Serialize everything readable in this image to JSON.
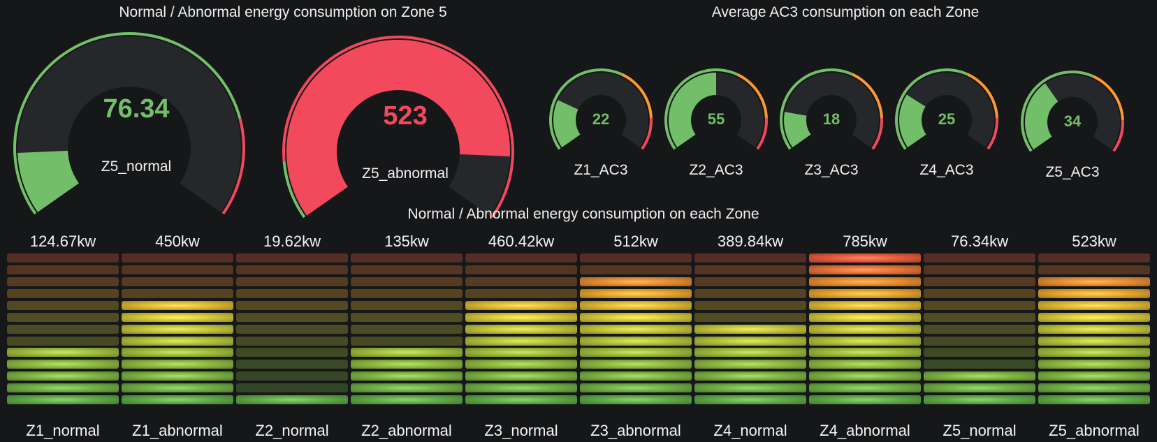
{
  "zone5_panel": {
    "title": "Normal / Abnormal energy consumption on Zone 5",
    "gauges": [
      {
        "label": "Z5_normal",
        "value": "76.34",
        "fraction": 0.13,
        "color": "#73bf69"
      },
      {
        "label": "Z5_abnormal",
        "value": "523",
        "fraction": 0.87,
        "color": "#f2495c"
      }
    ]
  },
  "ac3_panel": {
    "title": "Average AC3 consumption on each Zone",
    "gauges": [
      {
        "label": "Z1_AC3",
        "value": "22",
        "fraction": 0.24
      },
      {
        "label": "Z2_AC3",
        "value": "55",
        "fraction": 0.5
      },
      {
        "label": "Z3_AC3",
        "value": "18",
        "fraction": 0.18
      },
      {
        "label": "Z4_AC3",
        "value": "25",
        "fraction": 0.27
      },
      {
        "label": "Z5_AC3",
        "value": "34",
        "fraction": 0.36
      }
    ]
  },
  "bars_panel": {
    "title": "Normal / Abnormal energy consumption on each Zone",
    "segments_total": 13,
    "bars": [
      {
        "label": "Z1_normal",
        "value": "124.67kw",
        "lit": 5
      },
      {
        "label": "Z1_abnormal",
        "value": "450kw",
        "lit": 9
      },
      {
        "label": "Z2_normal",
        "value": "19.62kw",
        "lit": 1
      },
      {
        "label": "Z2_abnormal",
        "value": "135kw",
        "lit": 5
      },
      {
        "label": "Z3_normal",
        "value": "460.42kw",
        "lit": 9
      },
      {
        "label": "Z3_abnormal",
        "value": "512kw",
        "lit": 11
      },
      {
        "label": "Z4_normal",
        "value": "389.84kw",
        "lit": 7
      },
      {
        "label": "Z4_abnormal",
        "value": "785kw",
        "lit": 13
      },
      {
        "label": "Z5_normal",
        "value": "76.34kw",
        "lit": 3
      },
      {
        "label": "Z5_abnormal",
        "value": "523kw",
        "lit": 11
      }
    ]
  },
  "colors": {
    "green": "#73bf69",
    "red": "#f2495c",
    "orange": "#ff9830",
    "track": "#26272b",
    "background": "#161719"
  }
}
